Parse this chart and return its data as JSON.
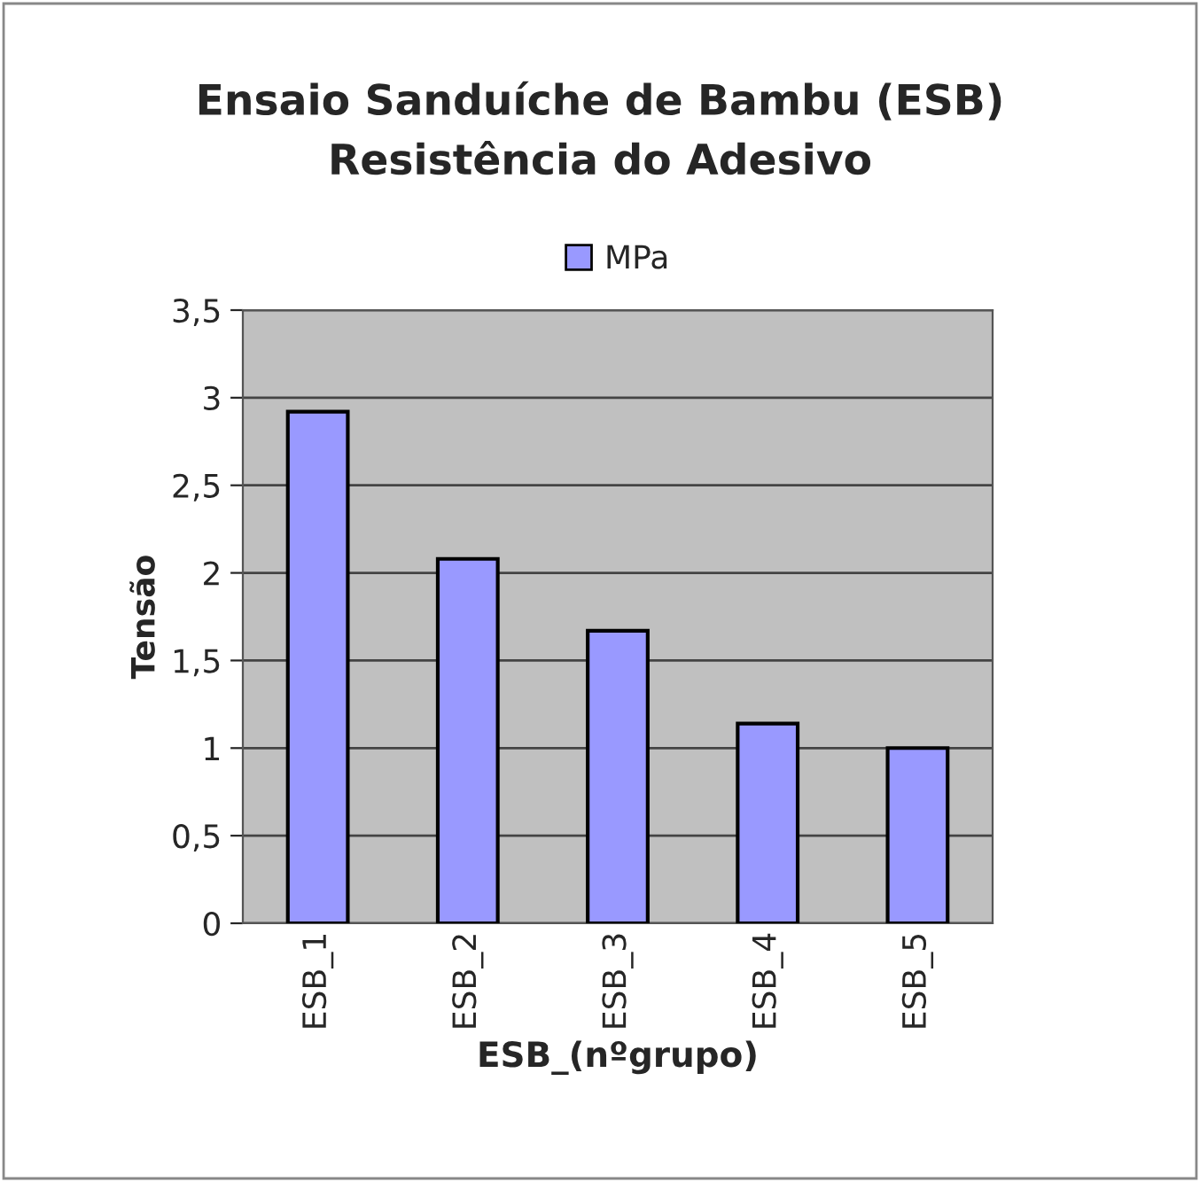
{
  "chart_data": {
    "type": "bar",
    "title": "Ensaio Sanduíche de Bambu (ESB)\nResistência do Adesivo",
    "xlabel": "ESB_(nºgrupo)",
    "ylabel": "Tensão",
    "categories": [
      "ESB_1",
      "ESB_2",
      "ESB_3",
      "ESB_4",
      "ESB_5"
    ],
    "series": [
      {
        "name": "MPa",
        "color": "#9999ff",
        "values": [
          2.92,
          2.08,
          1.67,
          1.14,
          1.0
        ]
      }
    ],
    "ylim": [
      0,
      3.5
    ],
    "yticks": [
      0,
      {
        "value": 0.5,
        "label": "0,5"
      },
      1,
      {
        "value": 1.5,
        "label": "1,5"
      },
      2,
      {
        "value": 2.5,
        "label": "2,5"
      },
      3,
      {
        "value": 3.5,
        "label": "3,5"
      }
    ],
    "grid": "y",
    "legend": "top"
  }
}
